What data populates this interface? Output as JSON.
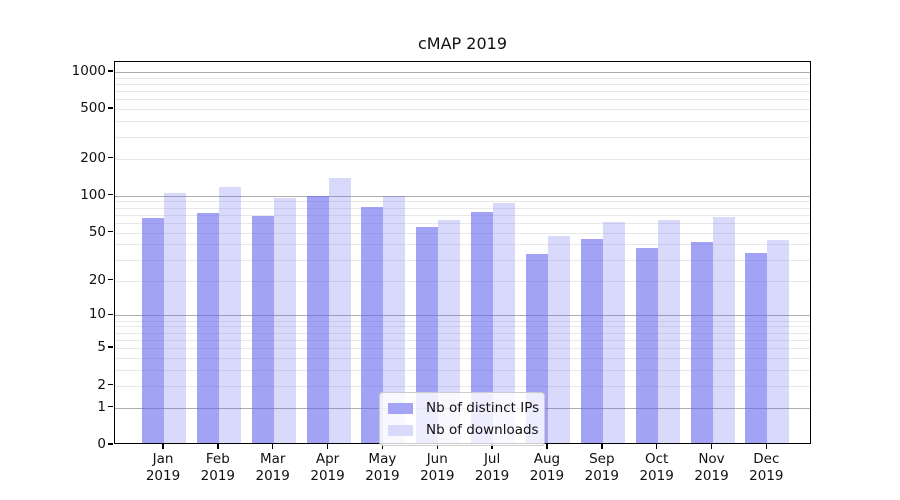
{
  "title": "cMAP 2019",
  "colors": {
    "bar_base_rgb": "102,102,238",
    "ips_alpha": 0.6,
    "downloads_alpha": 0.25,
    "ips_flat_hex": "#a4a4f5",
    "downloads_flat_hex": "#d9d9fb",
    "grid_major": "#adadad",
    "grid_minor": "#e8e8e8",
    "axis": "#000000"
  },
  "legend": {
    "items": [
      {
        "label": "Nb of distinct IPs",
        "color": "#a4a4f5"
      },
      {
        "label": "Nb of downloads",
        "color": "#d9d9fb"
      }
    ]
  },
  "chart_data": {
    "type": "bar",
    "title": "cMAP 2019",
    "categories": [
      "Jan 2019",
      "Feb 2019",
      "Mar 2019",
      "Apr 2019",
      "May 2019",
      "Jun 2019",
      "Jul 2019",
      "Aug 2019",
      "Sep 2019",
      "Oct 2019",
      "Nov 2019",
      "Dec 2019"
    ],
    "series": [
      {
        "name": "Nb of distinct IPs",
        "values": [
          64,
          70,
          66,
          95,
          78,
          54,
          71,
          32,
          43,
          36,
          40,
          33
        ]
      },
      {
        "name": "Nb of downloads",
        "values": [
          102,
          114,
          92,
          134,
          95,
          61,
          84,
          45,
          59,
          61,
          65,
          42
        ]
      }
    ],
    "xlabel": "",
    "ylabel": "",
    "yscale": "log1p",
    "ylim": [
      0,
      1200
    ],
    "yticks": [
      1000,
      500,
      200,
      100,
      50,
      20,
      10,
      5,
      2,
      1,
      0
    ],
    "grid_major_values": [
      1,
      10,
      100,
      1000
    ],
    "grid_minor_values": [
      2,
      3,
      4,
      5,
      6,
      7,
      8,
      9,
      20,
      30,
      40,
      50,
      60,
      70,
      80,
      90,
      200,
      300,
      400,
      500,
      600,
      700,
      800,
      900
    ],
    "grid": "both",
    "legend_position": "lower center"
  }
}
